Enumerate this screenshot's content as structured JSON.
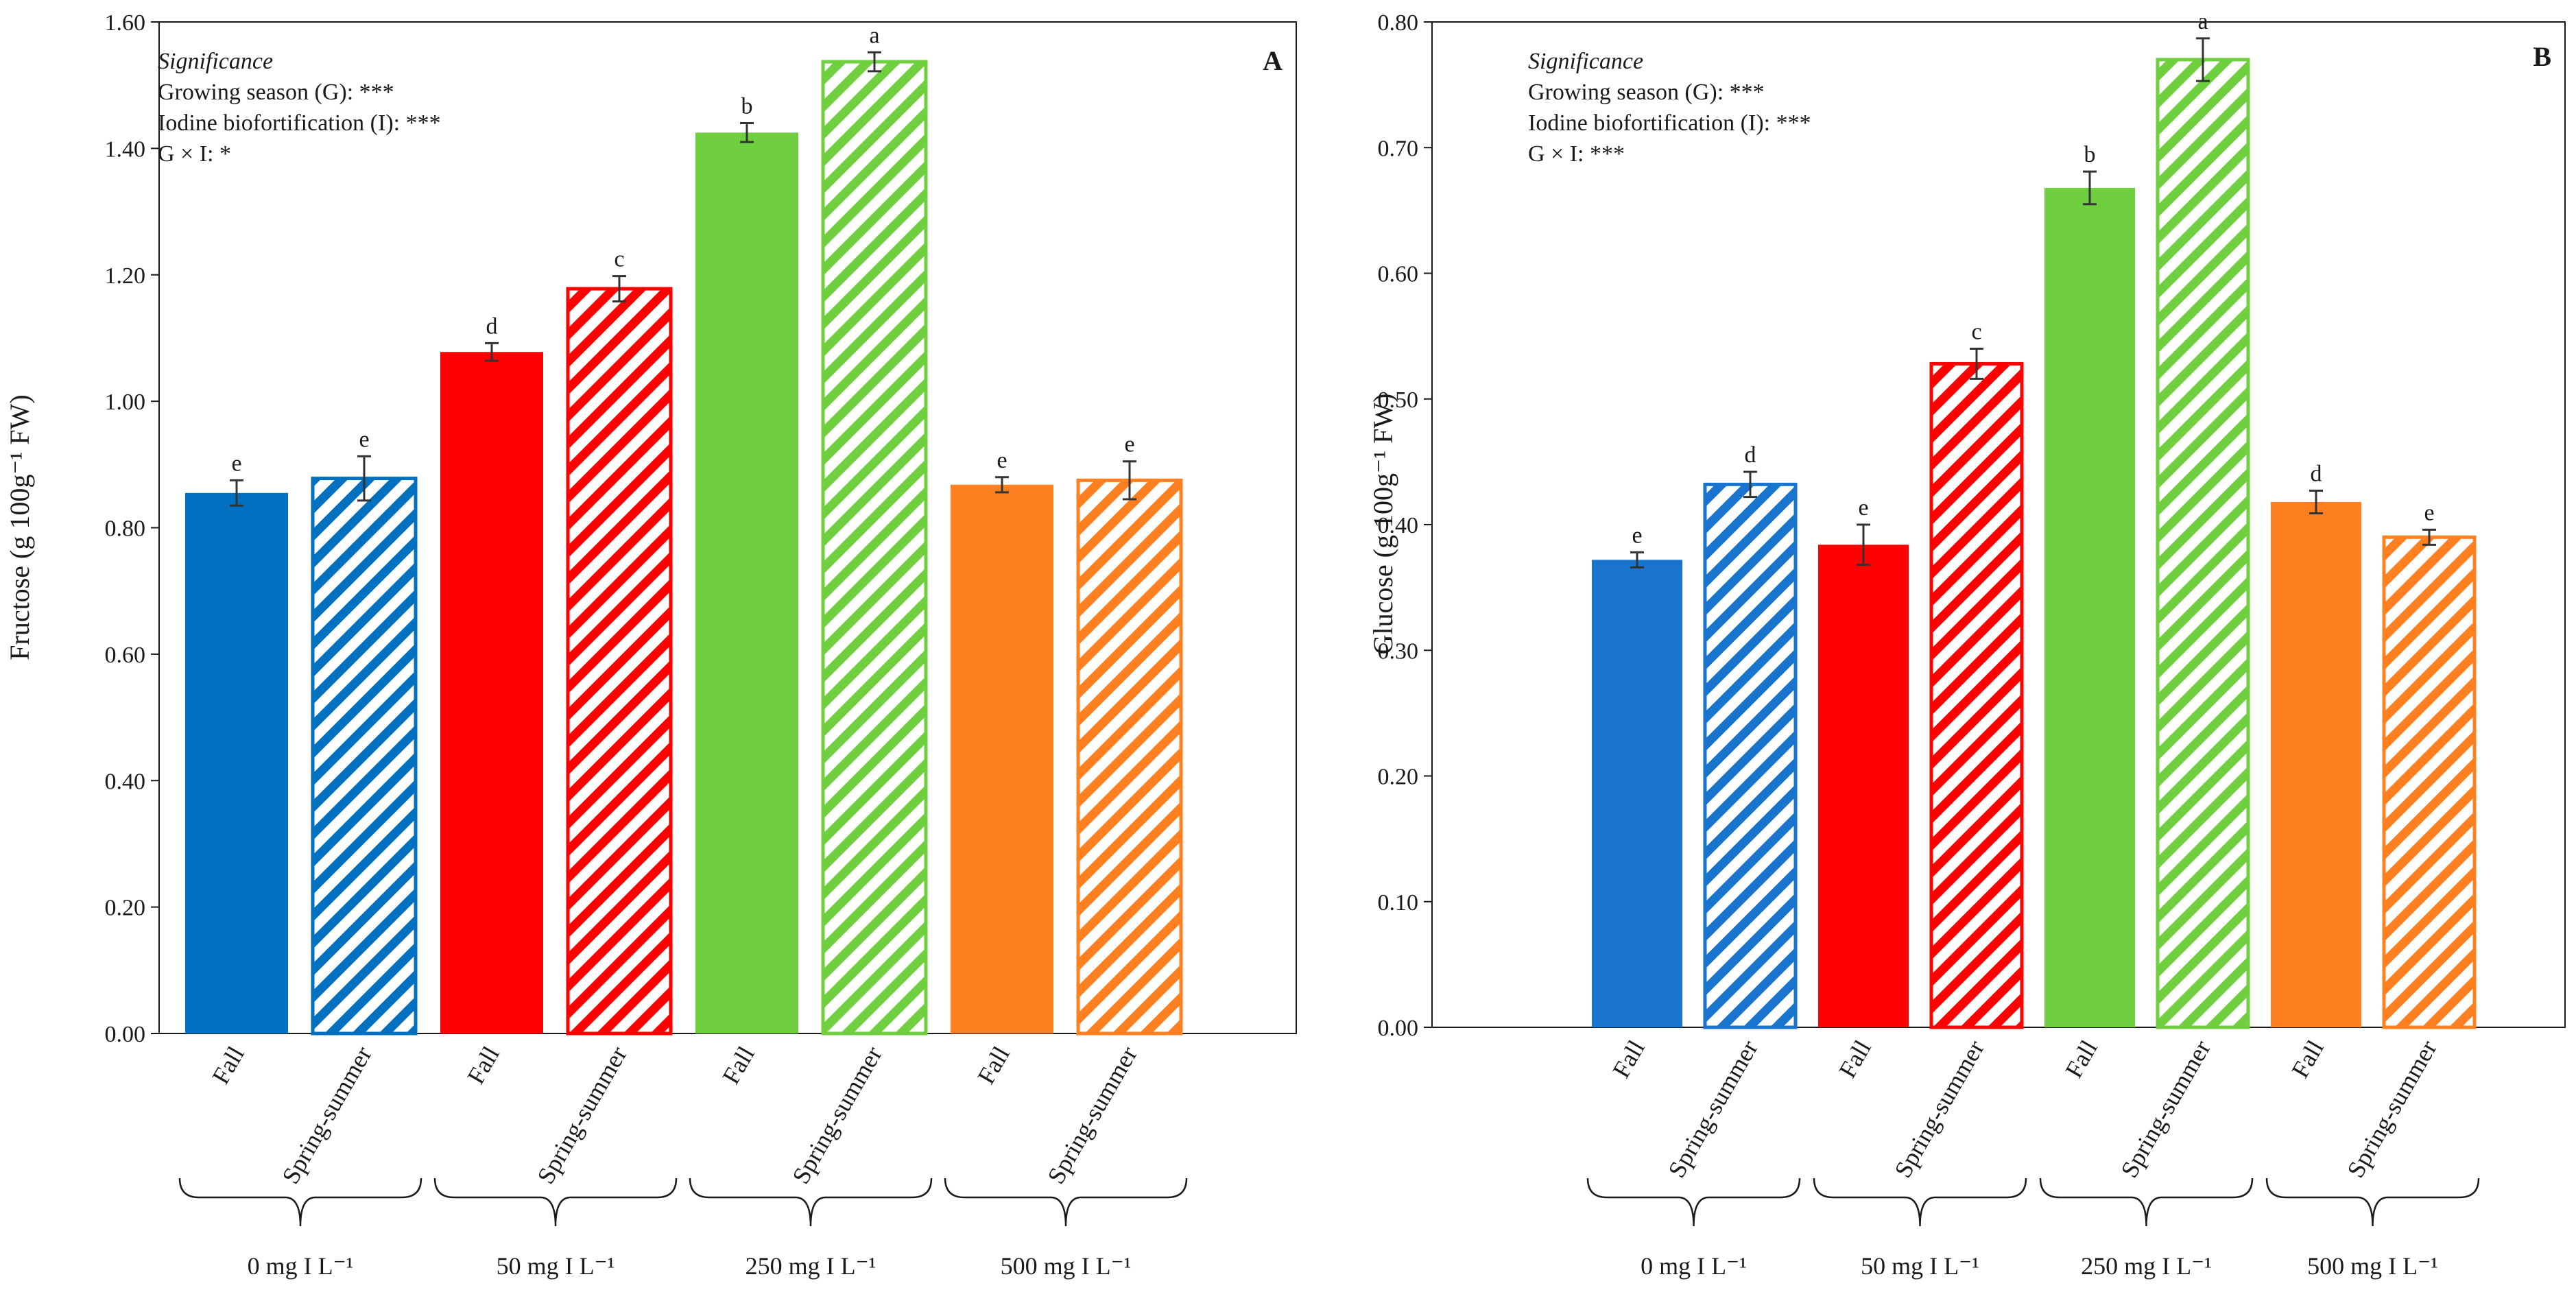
{
  "chart_data": [
    {
      "type": "bar",
      "panel_label": "A",
      "ylabel": "Fructose (g 100g⁻¹ FW)",
      "ylim": [
        0,
        1.6
      ],
      "ytick_values": [
        0,
        0.2,
        0.4,
        0.6,
        0.8,
        1.0,
        1.2,
        1.4,
        1.6
      ],
      "ytick_labels": [
        "0.00",
        "0.20",
        "0.40",
        "0.60",
        "0.80",
        "1.00",
        "1.20",
        "1.40",
        "1.60"
      ],
      "significance": {
        "title": "Significance",
        "lines": [
          "Growing season (G): ***",
          "Iodine biofortification (I): ***",
          "G × I: *"
        ]
      },
      "groups": [
        "0 mg I L⁻¹",
        "50 mg I L⁻¹",
        "250 mg I L⁻¹",
        "500 mg I L⁻¹"
      ],
      "categories": [
        "Fall",
        "Spring-summer",
        "Fall",
        "Spring-summer",
        "Fall",
        "Spring-summer",
        "Fall",
        "Spring-summer"
      ],
      "values": [
        0.855,
        0.878,
        1.078,
        1.178,
        1.425,
        1.537,
        0.868,
        0.875
      ],
      "errors": [
        0.02,
        0.035,
        0.014,
        0.02,
        0.015,
        0.015,
        0.012,
        0.03
      ],
      "letters": [
        "e",
        "e",
        "d",
        "c",
        "b",
        "a",
        "e",
        "e"
      ],
      "colors": [
        "#0070c0",
        "#0070c0",
        "#ff0000",
        "#ff0000",
        "#6fcf3f",
        "#6fcf3f",
        "#ff8020",
        "#ff8020"
      ],
      "hatched": [
        false,
        true,
        false,
        true,
        false,
        true,
        false,
        true
      ]
    },
    {
      "type": "bar",
      "panel_label": "B",
      "ylabel": "Glucose (g 100g⁻¹ FW)",
      "ylim": [
        0,
        0.8
      ],
      "ytick_values": [
        0,
        0.1,
        0.2,
        0.3,
        0.4,
        0.5,
        0.6,
        0.7,
        0.8
      ],
      "ytick_labels": [
        "0.00",
        "0.10",
        "0.20",
        "0.30",
        "0.40",
        "0.50",
        "0.60",
        "0.70",
        "0.80"
      ],
      "significance": {
        "title": "Significance",
        "lines": [
          "Growing season (G): ***",
          "Iodine biofortification (I): ***",
          "G × I: ***"
        ]
      },
      "groups": [
        "0 mg I L⁻¹",
        "50 mg I L⁻¹",
        "250 mg I L⁻¹",
        "500 mg I L⁻¹"
      ],
      "categories": [
        "Fall",
        "Spring-summer",
        "Fall",
        "Spring-summer",
        "Fall",
        "Spring-summer",
        "Fall",
        "Spring-summer"
      ],
      "values": [
        0.372,
        0.432,
        0.384,
        0.528,
        0.668,
        0.77,
        0.418,
        0.39
      ],
      "errors": [
        0.006,
        0.01,
        0.016,
        0.012,
        0.013,
        0.017,
        0.009,
        0.006
      ],
      "letters": [
        "e",
        "d",
        "e",
        "c",
        "b",
        "a",
        "d",
        "e"
      ],
      "colors": [
        "#1874cd",
        "#1874cd",
        "#ff0000",
        "#ff0000",
        "#6fcf3f",
        "#6fcf3f",
        "#ff8020",
        "#ff8020"
      ],
      "hatched": [
        false,
        true,
        false,
        true,
        false,
        true,
        false,
        true
      ]
    }
  ]
}
